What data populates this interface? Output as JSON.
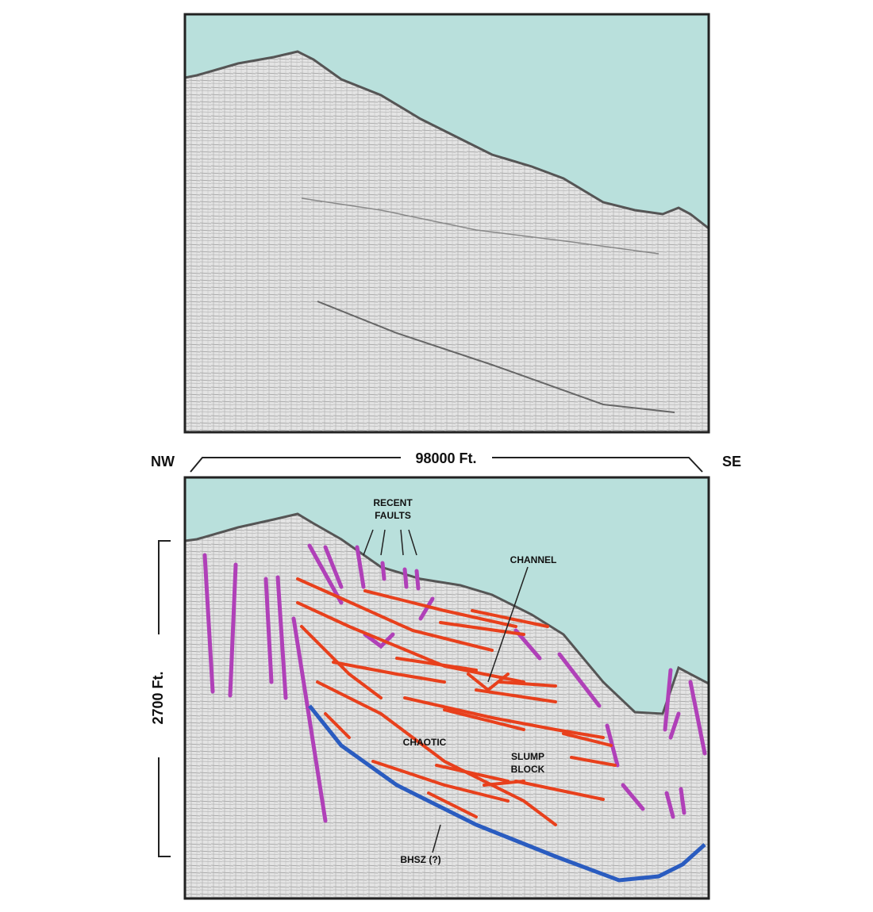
{
  "scale": {
    "left": "NW",
    "right": "SE",
    "horizontal": "98000 Ft.",
    "vertical": "2700 Ft."
  },
  "labels": {
    "recent_faults": [
      "RECENT",
      "FAULTS"
    ],
    "channel": "CHANNEL",
    "chaotic": "CHAOTIC",
    "slump_block": [
      "SLUMP",
      "BLOCK"
    ],
    "bhsz": "BHSZ (?)"
  }
}
